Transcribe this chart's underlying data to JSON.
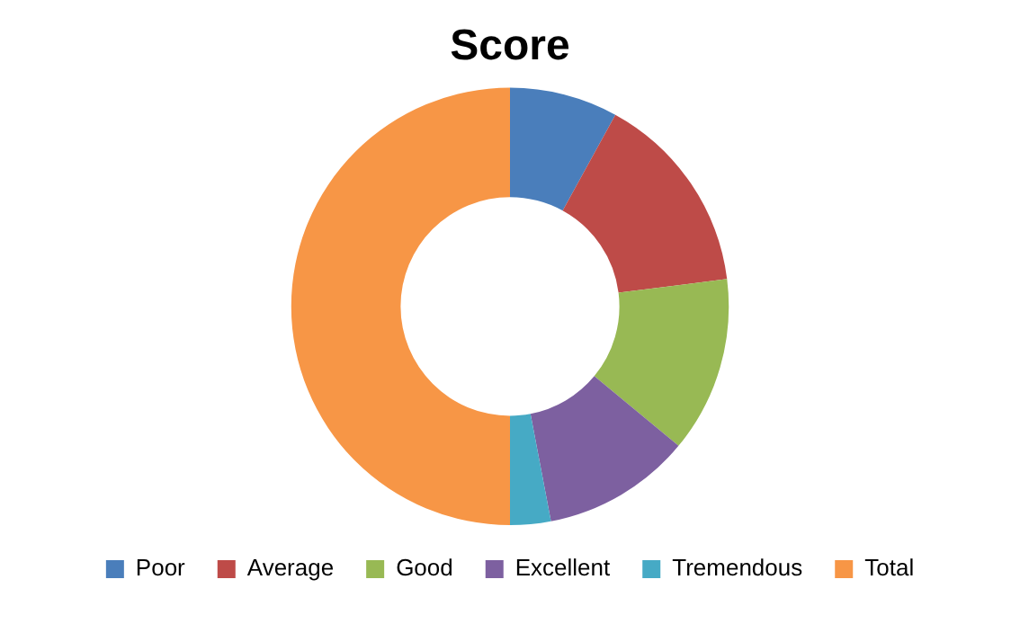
{
  "chart_data": {
    "type": "donut",
    "title": "Score",
    "categories": [
      "Poor",
      "Average",
      "Good",
      "Excellent",
      "Tremendous",
      "Total"
    ],
    "values": [
      8,
      15,
      13,
      11,
      3,
      50
    ],
    "colors": [
      "#4a7ebb",
      "#be4b48",
      "#98b954",
      "#7d60a0",
      "#46aac5",
      "#f79646"
    ],
    "legend": "bottom"
  }
}
